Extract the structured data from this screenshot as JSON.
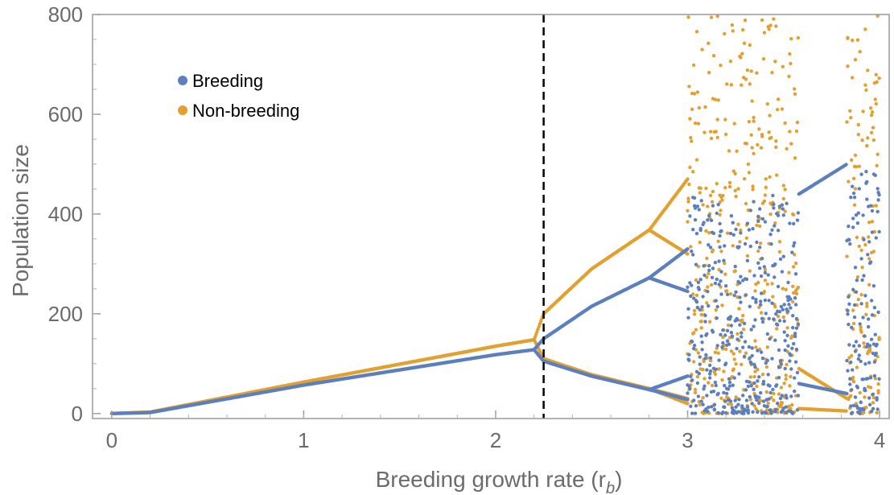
{
  "chart_data": {
    "type": "scatter",
    "title": "",
    "xlabel": "Breeding growth rate (r",
    "xlabel_subscript": "b",
    "xlabel_close": ")",
    "ylabel": "Population size",
    "xlim": [
      -0.1,
      4.05
    ],
    "ylim": [
      -10,
      800
    ],
    "x_ticks": [
      0,
      1,
      2,
      3,
      4
    ],
    "x_tick_labels": [
      "0",
      "1",
      "2",
      "3",
      "4"
    ],
    "y_ticks": [
      0,
      200,
      400,
      600,
      800
    ],
    "y_tick_labels": [
      "0",
      "200",
      "400",
      "600",
      "800"
    ],
    "grid": false,
    "legend_position": "top-left",
    "reference_line": {
      "x": 2.25,
      "style": "dashed",
      "color": "#000000"
    },
    "series": [
      {
        "name": "Breeding",
        "color": "#5b7fbf",
        "branches": [
          {
            "from": 0.0,
            "to": 2.2,
            "y": [
              [
                0,
                0
              ],
              [
                0.2,
                2
              ],
              [
                1.0,
                57
              ],
              [
                2.0,
                118
              ],
              [
                2.2,
                128
              ]
            ]
          },
          {
            "from": 2.2,
            "to": 2.8,
            "y": [
              [
                2.2,
                128
              ],
              [
                2.25,
                150
              ],
              [
                2.5,
                215
              ],
              [
                2.8,
                272
              ]
            ]
          },
          {
            "from": 2.2,
            "to": 2.8,
            "y": [
              [
                2.2,
                128
              ],
              [
                2.25,
                105
              ],
              [
                2.5,
                75
              ],
              [
                2.8,
                48
              ]
            ]
          },
          {
            "from": 2.8,
            "to": 3.0,
            "y": [
              [
                2.8,
                272
              ],
              [
                3.0,
                330
              ]
            ]
          },
          {
            "from": 2.8,
            "to": 3.0,
            "y": [
              [
                2.8,
                272
              ],
              [
                3.0,
                245
              ]
            ]
          },
          {
            "from": 2.8,
            "to": 3.0,
            "y": [
              [
                2.8,
                48
              ],
              [
                3.0,
                75
              ]
            ]
          },
          {
            "from": 2.8,
            "to": 3.0,
            "y": [
              [
                2.8,
                48
              ],
              [
                3.0,
                28
              ]
            ]
          }
        ],
        "chaotic_regions": [
          {
            "from": 3.0,
            "to": 3.58,
            "min": 0,
            "max": 440
          },
          {
            "from": 3.83,
            "to": 4.0,
            "min": 0,
            "max": 510
          }
        ],
        "window": {
          "from": 3.58,
          "to": 3.83,
          "y": [
            [
              3.58,
              440
            ],
            [
              3.83,
              500
            ]
          ],
          "low": [
            [
              3.58,
              60
            ],
            [
              3.83,
              40
            ]
          ]
        }
      },
      {
        "name": "Non-breeding",
        "color": "#e3a02f",
        "branches": [
          {
            "from": 0.0,
            "to": 2.2,
            "y": [
              [
                0,
                0
              ],
              [
                0.2,
                3
              ],
              [
                1.0,
                63
              ],
              [
                2.0,
                135
              ],
              [
                2.2,
                148
              ]
            ]
          },
          {
            "from": 2.2,
            "to": 2.8,
            "y": [
              [
                2.2,
                148
              ],
              [
                2.25,
                200
              ],
              [
                2.5,
                290
              ],
              [
                2.8,
                368
              ]
            ]
          },
          {
            "from": 2.2,
            "to": 2.8,
            "y": [
              [
                2.2,
                148
              ],
              [
                2.25,
                110
              ],
              [
                2.5,
                78
              ],
              [
                2.8,
                50
              ]
            ]
          },
          {
            "from": 2.8,
            "to": 3.0,
            "y": [
              [
                2.8,
                368
              ],
              [
                3.0,
                470
              ]
            ]
          },
          {
            "from": 2.8,
            "to": 3.0,
            "y": [
              [
                2.8,
                368
              ],
              [
                3.0,
                320
              ]
            ]
          },
          {
            "from": 2.8,
            "to": 3.0,
            "y": [
              [
                2.8,
                50
              ],
              [
                3.0,
                30
              ]
            ]
          },
          {
            "from": 2.8,
            "to": 3.0,
            "y": [
              [
                2.8,
                50
              ],
              [
                3.0,
                20
              ]
            ]
          }
        ],
        "chaotic_regions": [
          {
            "from": 3.0,
            "to": 3.58,
            "min": 0,
            "max": 800
          },
          {
            "from": 3.83,
            "to": 4.0,
            "min": 0,
            "max": 800
          }
        ],
        "window": {
          "from": 3.58,
          "to": 3.83,
          "y": [
            [
              3.58,
              90
            ],
            [
              3.83,
              30
            ]
          ],
          "low": [
            [
              3.58,
              10
            ],
            [
              3.83,
              5
            ]
          ]
        }
      }
    ]
  }
}
